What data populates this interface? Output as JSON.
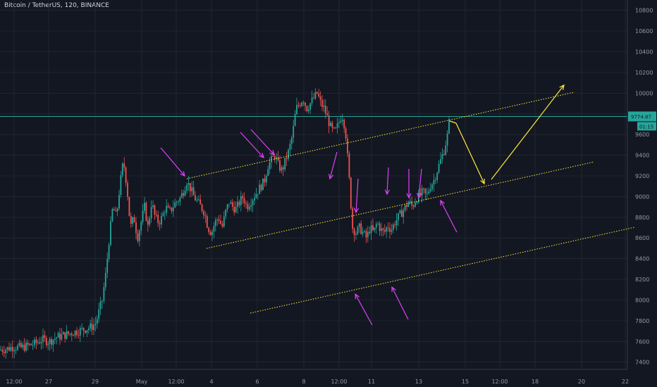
{
  "chart_data": {
    "type": "candlestick",
    "title": "Bitcoin / TetherUS, 120, BINANCE",
    "ylim": [
      7330,
      10900
    ],
    "y_ticks": [
      7400,
      7600,
      7800,
      8000,
      8200,
      8400,
      8600,
      8800,
      9000,
      9200,
      9400,
      9600,
      9800,
      10000,
      10200,
      10400,
      10600,
      10800
    ],
    "x_ticks": [
      "12:00",
      "27",
      "29",
      "May",
      "12:00",
      "4",
      "6",
      "8",
      "12:00",
      "11",
      "13",
      "15",
      "12:00",
      "18",
      "20",
      "22"
    ],
    "current_price": "9774.87",
    "countdown": "01:15",
    "colors": {
      "background": "#131722",
      "up": "#26a69a",
      "down": "#ef5350",
      "channel": "#ffeb3b",
      "arrow": "#e040fb",
      "level": "#26a69a",
      "grid": "#2a2e39"
    },
    "price_path": [
      [
        0,
        7520
      ],
      [
        10,
        7530
      ],
      [
        20,
        7550
      ],
      [
        30,
        7540
      ],
      [
        40,
        7560
      ],
      [
        50,
        7580
      ],
      [
        60,
        7620
      ],
      [
        70,
        7600
      ],
      [
        80,
        7640
      ],
      [
        90,
        7660
      ],
      [
        100,
        7680
      ],
      [
        110,
        7700
      ],
      [
        120,
        7720
      ],
      [
        130,
        7740
      ],
      [
        136,
        7780
      ],
      [
        140,
        7880
      ],
      [
        145,
        8000
      ],
      [
        150,
        8250
      ],
      [
        155,
        8600
      ],
      [
        160,
        8900
      ],
      [
        165,
        8800
      ],
      [
        170,
        9100
      ],
      [
        175,
        9350
      ],
      [
        180,
        9100
      ],
      [
        185,
        8700
      ],
      [
        190,
        8800
      ],
      [
        195,
        8600
      ],
      [
        200,
        8750
      ],
      [
        205,
        8900
      ],
      [
        210,
        8700
      ],
      [
        215,
        8950
      ],
      [
        220,
        8800
      ],
      [
        225,
        8750
      ],
      [
        230,
        8800
      ],
      [
        235,
        8900
      ],
      [
        240,
        8850
      ],
      [
        245,
        8900
      ],
      [
        250,
        8950
      ],
      [
        255,
        8980
      ],
      [
        260,
        9050
      ],
      [
        265,
        9150
      ],
      [
        270,
        9080
      ],
      [
        275,
        9000
      ],
      [
        280,
        8950
      ],
      [
        285,
        8900
      ],
      [
        290,
        8850
      ],
      [
        295,
        8700
      ],
      [
        300,
        8650
      ],
      [
        305,
        8750
      ],
      [
        310,
        8800
      ],
      [
        315,
        8700
      ],
      [
        320,
        8850
      ],
      [
        325,
        8950
      ],
      [
        330,
        8900
      ],
      [
        335,
        8880
      ],
      [
        340,
        8950
      ],
      [
        345,
        9000
      ],
      [
        350,
        8900
      ],
      [
        355,
        8950
      ],
      [
        360,
        9000
      ],
      [
        365,
        9050
      ],
      [
        370,
        9100
      ],
      [
        375,
        9150
      ],
      [
        380,
        9300
      ],
      [
        385,
        9350
      ],
      [
        390,
        9400
      ],
      [
        395,
        9300
      ],
      [
        400,
        9250
      ],
      [
        405,
        9350
      ],
      [
        410,
        9450
      ],
      [
        415,
        9600
      ],
      [
        420,
        9850
      ],
      [
        425,
        9900
      ],
      [
        430,
        9950
      ],
      [
        435,
        9850
      ],
      [
        440,
        9900
      ],
      [
        445,
        9950
      ],
      [
        450,
        10000
      ],
      [
        455,
        9900
      ],
      [
        460,
        9850
      ],
      [
        465,
        9750
      ],
      [
        470,
        9650
      ],
      [
        475,
        9620
      ],
      [
        480,
        9700
      ],
      [
        485,
        9800
      ],
      [
        490,
        9650
      ],
      [
        495,
        9200
      ],
      [
        500,
        8700
      ],
      [
        505,
        8650
      ],
      [
        510,
        8700
      ],
      [
        515,
        8650
      ],
      [
        520,
        8600
      ],
      [
        525,
        8700
      ],
      [
        530,
        8650
      ],
      [
        535,
        8750
      ],
      [
        540,
        8680
      ],
      [
        545,
        8650
      ],
      [
        550,
        8720
      ],
      [
        555,
        8680
      ],
      [
        560,
        8750
      ],
      [
        565,
        8800
      ],
      [
        570,
        8850
      ],
      [
        575,
        8900
      ],
      [
        580,
        8950
      ],
      [
        585,
        8900
      ],
      [
        590,
        8980
      ],
      [
        595,
        9000
      ],
      [
        600,
        9050
      ],
      [
        605,
        9000
      ],
      [
        610,
        9100
      ],
      [
        615,
        9150
      ],
      [
        620,
        9250
      ],
      [
        625,
        9350
      ],
      [
        630,
        9450
      ],
      [
        635,
        9600
      ],
      [
        638,
        9770
      ]
    ],
    "level_price": 9774.87
  }
}
